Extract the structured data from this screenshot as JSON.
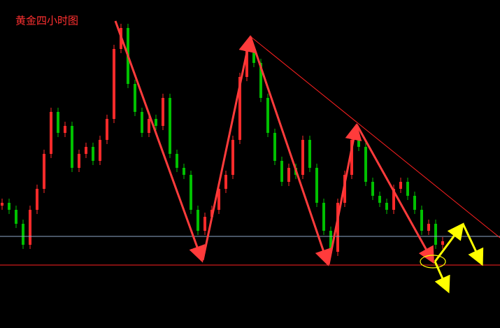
{
  "chart_data": {
    "type": "candlestick",
    "title": "黄金四小时图",
    "open": [
      175,
      179,
      169,
      149,
      119,
      169,
      199,
      249,
      309,
      279,
      289,
      229,
      249,
      259,
      239,
      269,
      299,
      399,
      429,
      349,
      309,
      279,
      299,
      289,
      329,
      249,
      229,
      219,
      169,
      139,
      159,
      169,
      199,
      219,
      269,
      359,
      399,
      379,
      329,
      279,
      239,
      209,
      229,
      219,
      269,
      229,
      179,
      139,
      109,
      179,
      219,
      269,
      259,
      209,
      189,
      179,
      169,
      199,
      209,
      189,
      169,
      139,
      149,
      119
    ],
    "high": [
      185,
      185,
      175,
      155,
      175,
      205,
      255,
      315,
      315,
      295,
      295,
      255,
      265,
      265,
      275,
      305,
      405,
      435,
      435,
      355,
      315,
      305,
      305,
      335,
      335,
      255,
      235,
      225,
      175,
      165,
      175,
      205,
      225,
      275,
      365,
      405,
      405,
      385,
      335,
      285,
      245,
      235,
      235,
      275,
      275,
      235,
      185,
      145,
      185,
      225,
      275,
      275,
      265,
      215,
      195,
      185,
      205,
      215,
      215,
      195,
      175,
      155,
      155,
      130
    ],
    "low": [
      169,
      163,
      143,
      113,
      113,
      163,
      193,
      243,
      273,
      273,
      223,
      223,
      243,
      233,
      233,
      263,
      293,
      393,
      343,
      303,
      273,
      273,
      283,
      283,
      243,
      223,
      213,
      163,
      133,
      133,
      153,
      163,
      193,
      213,
      263,
      353,
      373,
      323,
      273,
      233,
      203,
      203,
      213,
      213,
      223,
      173,
      133,
      103,
      103,
      173,
      213,
      253,
      203,
      183,
      173,
      163,
      163,
      193,
      183,
      163,
      133,
      133,
      113,
      113
    ],
    "close": [
      179,
      169,
      149,
      119,
      169,
      199,
      249,
      309,
      279,
      289,
      229,
      249,
      259,
      239,
      269,
      299,
      399,
      429,
      349,
      309,
      279,
      299,
      289,
      329,
      249,
      229,
      219,
      169,
      139,
      159,
      169,
      199,
      219,
      269,
      359,
      399,
      379,
      329,
      279,
      239,
      209,
      229,
      219,
      269,
      229,
      179,
      139,
      109,
      179,
      219,
      269,
      259,
      209,
      189,
      179,
      169,
      199,
      209,
      189,
      169,
      139,
      149,
      119,
      124
    ],
    "up_color": "#ff2a2a",
    "down_color": "#00c000",
    "ylim": [
      0,
      469
    ]
  }
}
